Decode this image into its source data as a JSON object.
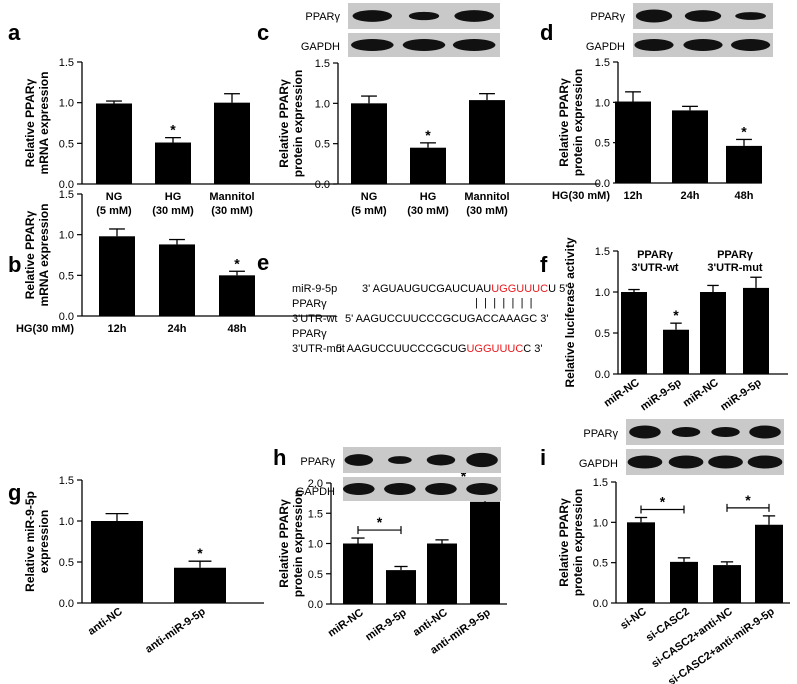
{
  "colors": {
    "bar": "#000000",
    "mutation": "#e8191c",
    "blot_bg": "#c9c9c9",
    "blot_band": "#111111"
  },
  "blot_labels": {
    "pparg": "PPARγ",
    "gapdh": "GAPDH"
  },
  "panel_e": {
    "label": "e",
    "rows": [
      {
        "name": [
          "miR-9-5p"
        ],
        "prefix": "3' AGUAUGUCGAUCUAU",
        "highlight": "UGGUUUC",
        "suffix": "U 5'"
      },
      {
        "name": [
          "PPARγ",
          "3'UTR-wt"
        ],
        "prefix": "5'  AAGUCCUUCCCGCUGACCAAAGC 3'",
        "highlight": "",
        "suffix": ""
      },
      {
        "name": [
          "PPARγ",
          "3'UTR-mut"
        ],
        "prefix": "5' AAGUCCUUCCCGCUG",
        "highlight": "UGGUUUC",
        "suffix": "C 3'"
      }
    ],
    "pairing": "| | | | | | |"
  },
  "chart_data": [
    {
      "label": "a",
      "type": "bar",
      "ylabel": [
        "Relative PPARγ",
        "mRNA expression"
      ],
      "ylim": [
        0,
        1.5
      ],
      "ticks": [
        "0.0",
        "0.5",
        "1.0",
        "1.5"
      ],
      "categories": [
        [
          "NG",
          "(5 mM)"
        ],
        [
          "HG",
          "(30 mM)"
        ],
        [
          "Mannitol",
          "(30 mM)"
        ]
      ],
      "values": [
        0.99,
        0.51,
        1.0
      ],
      "errors": [
        0.03,
        0.06,
        0.11
      ],
      "significance": [
        {
          "index": 1,
          "mark": "*"
        }
      ]
    },
    {
      "label": "b",
      "type": "bar",
      "ylabel": [
        "Relative PPARγ",
        "mRNA expression"
      ],
      "ylim": [
        0,
        1.5
      ],
      "ticks": [
        "0.0",
        "0.5",
        "1.0",
        "1.5"
      ],
      "prefix": "HG(30 mM)",
      "categories": [
        [
          "12h"
        ],
        [
          "24h"
        ],
        [
          "48h"
        ]
      ],
      "values": [
        0.98,
        0.88,
        0.5
      ],
      "errors": [
        0.09,
        0.06,
        0.05
      ],
      "significance": [
        {
          "index": 2,
          "mark": "*"
        }
      ]
    },
    {
      "label": "c",
      "type": "bar",
      "ylabel": [
        "Relative PPARγ",
        "protein expression"
      ],
      "ylim": [
        0,
        1.5
      ],
      "ticks": [
        "0.0",
        "0.5",
        "1.0",
        "1.5"
      ],
      "categories": [
        [
          "NG",
          "(5 mM)"
        ],
        [
          "HG",
          "(30 mM)"
        ],
        [
          "Mannitol",
          "(30 mM)"
        ]
      ],
      "values": [
        1.0,
        0.45,
        1.04
      ],
      "errors": [
        0.09,
        0.06,
        0.08
      ],
      "significance": [
        {
          "index": 1,
          "mark": "*"
        }
      ]
    },
    {
      "label": "d",
      "type": "bar",
      "ylabel": [
        "Relative PPARγ",
        "protein expression"
      ],
      "ylim": [
        0,
        1.5
      ],
      "ticks": [
        "0.0",
        "0.5",
        "1.0",
        "1.5"
      ],
      "prefix": "HG(30 mM)",
      "categories": [
        [
          "12h"
        ],
        [
          "24h"
        ],
        [
          "48h"
        ]
      ],
      "values": [
        1.01,
        0.9,
        0.46
      ],
      "errors": [
        0.12,
        0.05,
        0.08
      ],
      "significance": [
        {
          "index": 2,
          "mark": "*"
        }
      ]
    },
    {
      "label": "f",
      "type": "bar",
      "ylabel": [
        "Relative luciferase activity"
      ],
      "ylim": [
        0,
        1.5
      ],
      "ticks": [
        "0.0",
        "0.5",
        "1.0",
        "1.5"
      ],
      "groups": [
        [
          "PPARγ",
          "3'UTR-wt"
        ],
        [
          "PPARγ",
          "3'UTR-mut"
        ]
      ],
      "categories": [
        [
          "miR-NC"
        ],
        [
          "miR-9-5p"
        ],
        [
          "miR-NC"
        ],
        [
          "miR-9-5p"
        ]
      ],
      "values": [
        1.0,
        0.54,
        1.0,
        1.05
      ],
      "errors": [
        0.03,
        0.08,
        0.08,
        0.13
      ],
      "significance": [
        {
          "index": 1,
          "mark": "*"
        }
      ]
    },
    {
      "label": "g",
      "type": "bar",
      "ylabel": [
        "Relative miR-9-5p",
        "expression"
      ],
      "ylim": [
        0,
        1.5
      ],
      "ticks": [
        "0.0",
        "0.5",
        "1.0",
        "1.5"
      ],
      "categories": [
        [
          "anti-NC"
        ],
        [
          "anti-miR-9-5p"
        ]
      ],
      "values": [
        1.0,
        0.43
      ],
      "errors": [
        0.09,
        0.08
      ],
      "significance": [
        {
          "index": 1,
          "mark": "*"
        }
      ]
    },
    {
      "label": "h",
      "type": "bar",
      "ylabel": [
        "Relative PPARγ",
        "protein expression"
      ],
      "ylim": [
        0,
        2.0
      ],
      "ticks": [
        "0.0",
        "0.5",
        "1.0",
        "1.5",
        "2.0"
      ],
      "categories": [
        [
          "miR-NC"
        ],
        [
          "miR-9-5p"
        ],
        [
          "anti-NC"
        ],
        [
          "anti-miR-9-5p"
        ]
      ],
      "values": [
        1.0,
        0.56,
        1.0,
        1.69
      ],
      "errors": [
        0.09,
        0.06,
        0.06,
        0.16
      ],
      "brackets": [
        {
          "from": 0,
          "to": 1,
          "mark": "*"
        },
        {
          "from": 2,
          "to": 3,
          "mark": "*"
        }
      ]
    },
    {
      "label": "i",
      "type": "bar",
      "ylabel": [
        "Relative PPARγ",
        "protein expression"
      ],
      "ylim": [
        0,
        1.5
      ],
      "ticks": [
        "0.0",
        "0.5",
        "1.0",
        "1.5"
      ],
      "categories": [
        [
          "si-NC"
        ],
        [
          "si-CASC2"
        ],
        [
          "si-CASC2+anti-NC"
        ],
        [
          "si-CASC2+anti-miR-9-5p"
        ]
      ],
      "values": [
        1.0,
        0.51,
        0.47,
        0.97
      ],
      "errors": [
        0.06,
        0.05,
        0.04,
        0.11
      ],
      "brackets": [
        {
          "from": 0,
          "to": 1,
          "mark": "*"
        },
        {
          "from": 2,
          "to": 3,
          "mark": "*"
        }
      ]
    }
  ]
}
